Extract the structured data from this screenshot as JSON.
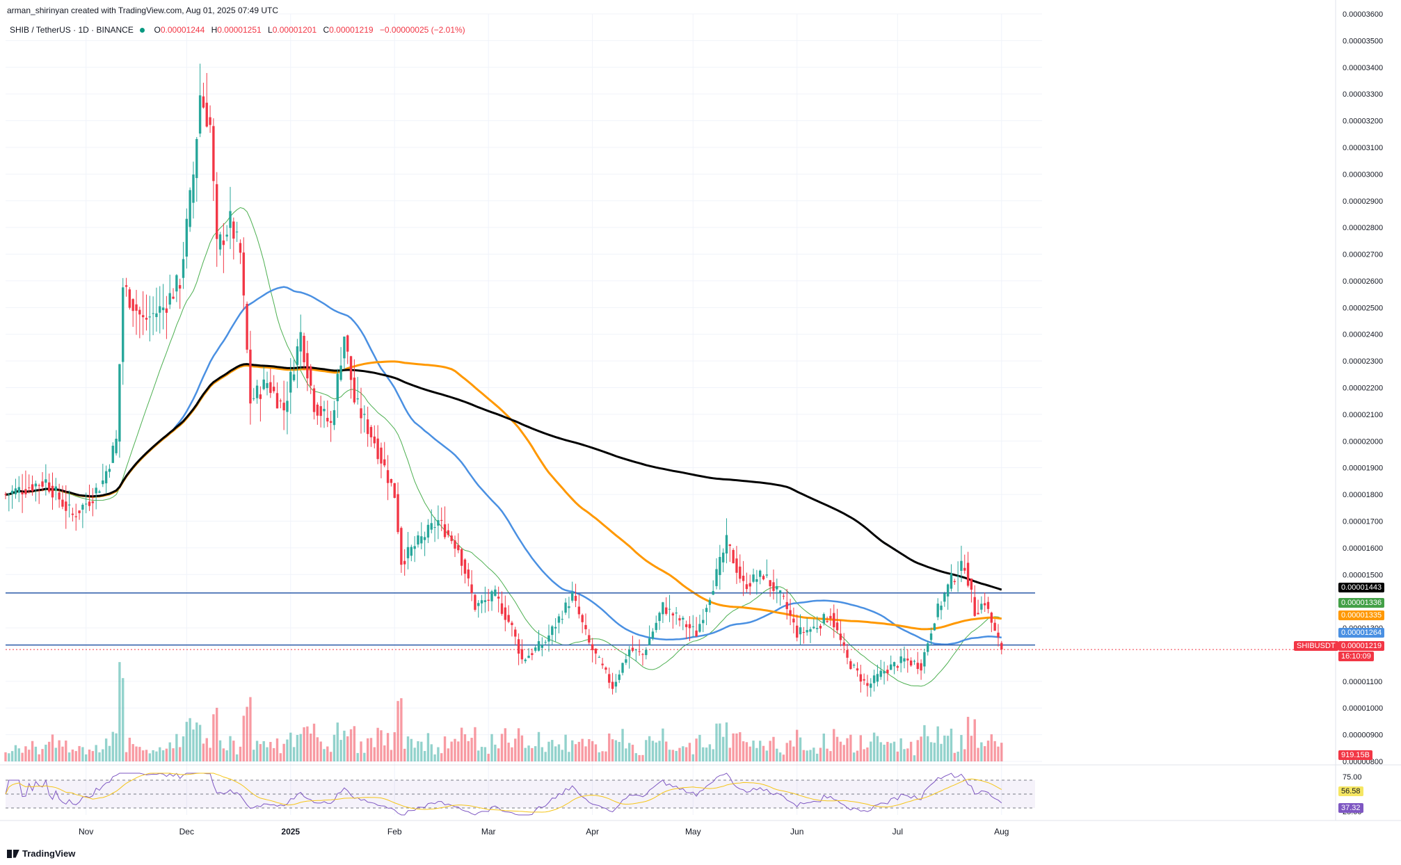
{
  "header": {
    "author_line": "arman_shirinyan created with TradingView.com, Aug 01, 2025 07:49 UTC",
    "symbol": "SHIB / TetherUS · 1D · BINANCE",
    "open_label": "O",
    "open": "0.00001244",
    "high_label": "H",
    "high": "0.00001251",
    "low_label": "L",
    "low": "0.00001201",
    "close_label": "C",
    "close": "0.00001219",
    "change": "−0.00000025 (−2.01%)"
  },
  "footer": {
    "brand": "TradingView"
  },
  "colors": {
    "up": "#26a69a",
    "down": "#f23645",
    "ma_green": "#4caf50",
    "ma_blue": "#4a90e2",
    "ma_orange": "#ff9800",
    "ma_black": "#000000",
    "hline": "#2a5aa8",
    "rsi": "#7e57c2",
    "rsi_ma": "#f5c518"
  },
  "badges": {
    "ma_black": "0.00001443",
    "ma_green": "0.00001336",
    "ma_orange": "0.00001335",
    "ma_blue": "0.00001264",
    "ticker": "SHIBUSDT",
    "last_price": "0.00001219",
    "countdown": "16:10:09",
    "volume": "919.15B",
    "rsi_ma": "56.58",
    "rsi": "37.32"
  },
  "chart_data": {
    "type": "candlestick",
    "title": "SHIB / TetherUS · 1D · BINANCE",
    "y_axis": {
      "ylim": [
        8e-06,
        3.6e-05
      ],
      "ticks": [
        "0.00003600",
        "0.00003500",
        "0.00003400",
        "0.00003300",
        "0.00003200",
        "0.00003100",
        "0.00003000",
        "0.00002900",
        "0.00002800",
        "0.00002700",
        "0.00002600",
        "0.00002500",
        "0.00002400",
        "0.00002300",
        "0.00002200",
        "0.00002100",
        "0.00002000",
        "0.00001900",
        "0.00001800",
        "0.00001700",
        "0.00001600",
        "0.00001500",
        "0.00001300",
        "0.00001100",
        "0.00001000",
        "0.00000900",
        "0.00000800"
      ]
    },
    "x_axis": {
      "ticks": [
        {
          "label": "Nov",
          "date": "2024-11-01"
        },
        {
          "label": "Dec",
          "date": "2024-12-01"
        },
        {
          "label": "2025",
          "date": "2025-01-01"
        },
        {
          "label": "Feb",
          "date": "2025-02-01"
        },
        {
          "label": "Mar",
          "date": "2025-03-01"
        },
        {
          "label": "Apr",
          "date": "2025-04-01"
        },
        {
          "label": "May",
          "date": "2025-05-01"
        },
        {
          "label": "Jun",
          "date": "2025-06-01"
        },
        {
          "label": "Jul",
          "date": "2025-07-01"
        },
        {
          "label": "Aug",
          "date": "2025-08-01"
        }
      ],
      "range": [
        "2024-10-08",
        "2025-08-11"
      ]
    },
    "close_anchors": [
      {
        "date": "2024-10-08",
        "close": 1.8e-05
      },
      {
        "date": "2024-10-20",
        "close": 1.85e-05
      },
      {
        "date": "2024-10-28",
        "close": 1.72e-05
      },
      {
        "date": "2024-11-02",
        "close": 1.78e-05
      },
      {
        "date": "2024-11-06",
        "close": 1.85e-05
      },
      {
        "date": "2024-11-10",
        "close": 2e-05
      },
      {
        "date": "2024-11-12",
        "close": 2.58e-05
      },
      {
        "date": "2024-11-18",
        "close": 2.45e-05
      },
      {
        "date": "2024-11-24",
        "close": 2.5e-05
      },
      {
        "date": "2024-11-29",
        "close": 2.6e-05
      },
      {
        "date": "2024-12-03",
        "close": 3e-05
      },
      {
        "date": "2024-12-05",
        "close": 3.3e-05
      },
      {
        "date": "2024-12-08",
        "close": 3.18e-05
      },
      {
        "date": "2024-12-10",
        "close": 2.72e-05
      },
      {
        "date": "2024-12-14",
        "close": 2.82e-05
      },
      {
        "date": "2024-12-17",
        "close": 2.7e-05
      },
      {
        "date": "2024-12-20",
        "close": 2.15e-05
      },
      {
        "date": "2024-12-25",
        "close": 2.22e-05
      },
      {
        "date": "2024-12-30",
        "close": 2.12e-05
      },
      {
        "date": "2025-01-04",
        "close": 2.4e-05
      },
      {
        "date": "2025-01-08",
        "close": 2.14e-05
      },
      {
        "date": "2025-01-13",
        "close": 2.06e-05
      },
      {
        "date": "2025-01-17",
        "close": 2.4e-05
      },
      {
        "date": "2025-01-20",
        "close": 2.15e-05
      },
      {
        "date": "2025-01-26",
        "close": 2e-05
      },
      {
        "date": "2025-02-01",
        "close": 1.8e-05
      },
      {
        "date": "2025-02-03",
        "close": 1.55e-05
      },
      {
        "date": "2025-02-08",
        "close": 1.62e-05
      },
      {
        "date": "2025-02-14",
        "close": 1.7e-05
      },
      {
        "date": "2025-02-20",
        "close": 1.6e-05
      },
      {
        "date": "2025-02-25",
        "close": 1.38e-05
      },
      {
        "date": "2025-03-03",
        "close": 1.42e-05
      },
      {
        "date": "2025-03-08",
        "close": 1.3e-05
      },
      {
        "date": "2025-03-11",
        "close": 1.18e-05
      },
      {
        "date": "2025-03-18",
        "close": 1.25e-05
      },
      {
        "date": "2025-03-26",
        "close": 1.42e-05
      },
      {
        "date": "2025-03-31",
        "close": 1.24e-05
      },
      {
        "date": "2025-04-07",
        "close": 1.08e-05
      },
      {
        "date": "2025-04-12",
        "close": 1.22e-05
      },
      {
        "date": "2025-04-16",
        "close": 1.2e-05
      },
      {
        "date": "2025-04-22",
        "close": 1.38e-05
      },
      {
        "date": "2025-04-28",
        "close": 1.32e-05
      },
      {
        "date": "2025-05-02",
        "close": 1.28e-05
      },
      {
        "date": "2025-05-08",
        "close": 1.5e-05
      },
      {
        "date": "2025-05-11",
        "close": 1.62e-05
      },
      {
        "date": "2025-05-16",
        "close": 1.46e-05
      },
      {
        "date": "2025-05-22",
        "close": 1.5e-05
      },
      {
        "date": "2025-05-28",
        "close": 1.4e-05
      },
      {
        "date": "2025-06-01",
        "close": 1.28e-05
      },
      {
        "date": "2025-06-06",
        "close": 1.3e-05
      },
      {
        "date": "2025-06-11",
        "close": 1.35e-05
      },
      {
        "date": "2025-06-16",
        "close": 1.18e-05
      },
      {
        "date": "2025-06-22",
        "close": 1.08e-05
      },
      {
        "date": "2025-06-27",
        "close": 1.14e-05
      },
      {
        "date": "2025-07-03",
        "close": 1.18e-05
      },
      {
        "date": "2025-07-08",
        "close": 1.16e-05
      },
      {
        "date": "2025-07-12",
        "close": 1.34e-05
      },
      {
        "date": "2025-07-17",
        "close": 1.48e-05
      },
      {
        "date": "2025-07-21",
        "close": 1.54e-05
      },
      {
        "date": "2025-07-24",
        "close": 1.36e-05
      },
      {
        "date": "2025-07-27",
        "close": 1.4e-05
      },
      {
        "date": "2025-07-30",
        "close": 1.28e-05
      },
      {
        "date": "2025-08-01",
        "close": 1.22e-05
      }
    ],
    "last_candle": {
      "date": "2025-08-01",
      "open": 1.244e-05,
      "high": 1.251e-05,
      "low": 1.201e-05,
      "close": 1.219e-05
    },
    "moving_averages": [
      {
        "color": "#4caf50",
        "period": 20,
        "last": 1.336e-05
      },
      {
        "color": "#4a90e2",
        "period": 50,
        "last": 1.264e-05
      },
      {
        "color": "#ff9800",
        "period": 100,
        "last": 1.335e-05
      },
      {
        "color": "#000000",
        "period": 200,
        "last": 1.443e-05
      }
    ],
    "horizontal_lines": [
      1.431e-05,
      1.236e-05
    ],
    "volume": {
      "last": "919.15B"
    },
    "rsi": {
      "ticks": [
        "75.00",
        "25.00"
      ],
      "levels": [
        70,
        50,
        30
      ],
      "ylim": [
        20,
        80
      ],
      "last": 37.32,
      "ma_last": 56.58
    }
  }
}
